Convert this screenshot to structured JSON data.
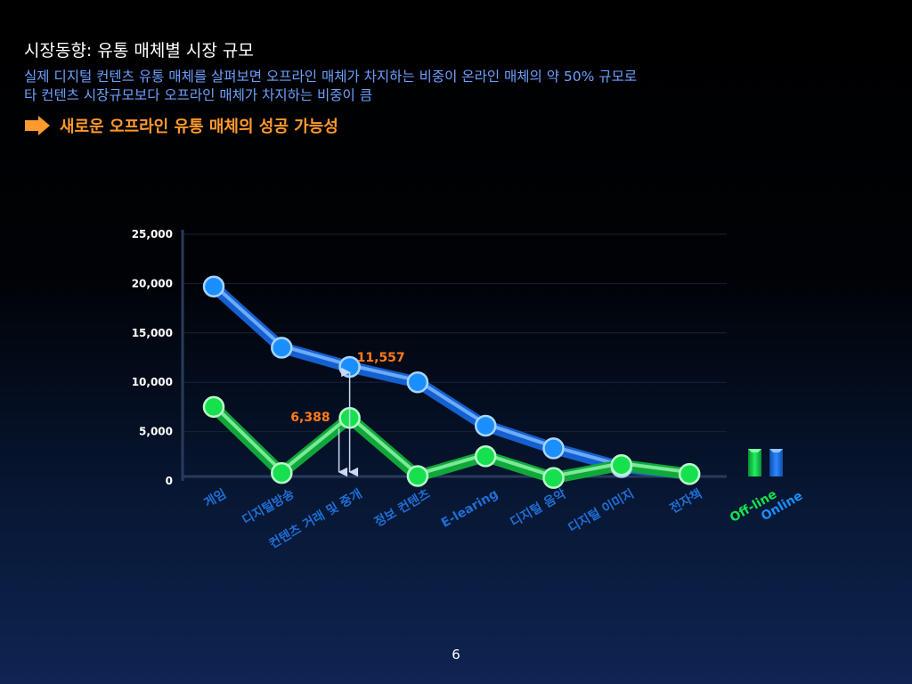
{
  "slide": {
    "title": "시장동향: 유통 매체별 시장 규모",
    "subtitle_lines": [
      "실제 디지털 컨텐츠 유통 매체를 살펴보면 오프라인 매체가 차지하는 비중이 온라인 매체의 약 50% 규모로",
      "타 컨텐츠 시장규모보다 오프라인 매체가 차지하는 비중이 큼"
    ],
    "highlight": "새로운 오프라인 유통 매체의 성공 가능성",
    "page_number": "6"
  },
  "colors": {
    "online": "#1a8fff",
    "offline": "#17e04f",
    "annotation": "#ff7a1a",
    "category_label": "#1f6fd6",
    "highlight": "#ff9a2e",
    "subtitle": "#6fa0ff"
  },
  "icons": {
    "highlight_marker": "right-arrow-icon"
  },
  "chart_data": {
    "type": "line",
    "categories": [
      "게임",
      "디지털방송",
      "컨텐츠 거래 및 중개",
      "정보 컨텐츠",
      "E-learing",
      "디지털 음악",
      "디지털 이미지",
      "전자책"
    ],
    "series": [
      {
        "name": "Online",
        "values": [
          19700,
          13500,
          11557,
          10000,
          5600,
          3300,
          1400,
          700
        ]
      },
      {
        "name": "Off-line",
        "values": [
          7500,
          800,
          6388,
          500,
          2500,
          300,
          1600,
          700
        ]
      }
    ],
    "ylim": [
      0,
      25000
    ],
    "yticks": [
      "0",
      "5,000",
      "10,000",
      "15,000",
      "20,000",
      "25,000"
    ],
    "annotations": [
      {
        "category": "컨텐츠 거래 및 중개",
        "series": "Online",
        "label": "11,557"
      },
      {
        "category": "컨텐츠 거래 및 중개",
        "series": "Off-line",
        "label": "6,388"
      }
    ],
    "legend": [
      {
        "label": "Off-line",
        "color": "#17e04f"
      },
      {
        "label": "Online",
        "color": "#1a8fff"
      }
    ],
    "legend_position": "right",
    "grid": true
  }
}
